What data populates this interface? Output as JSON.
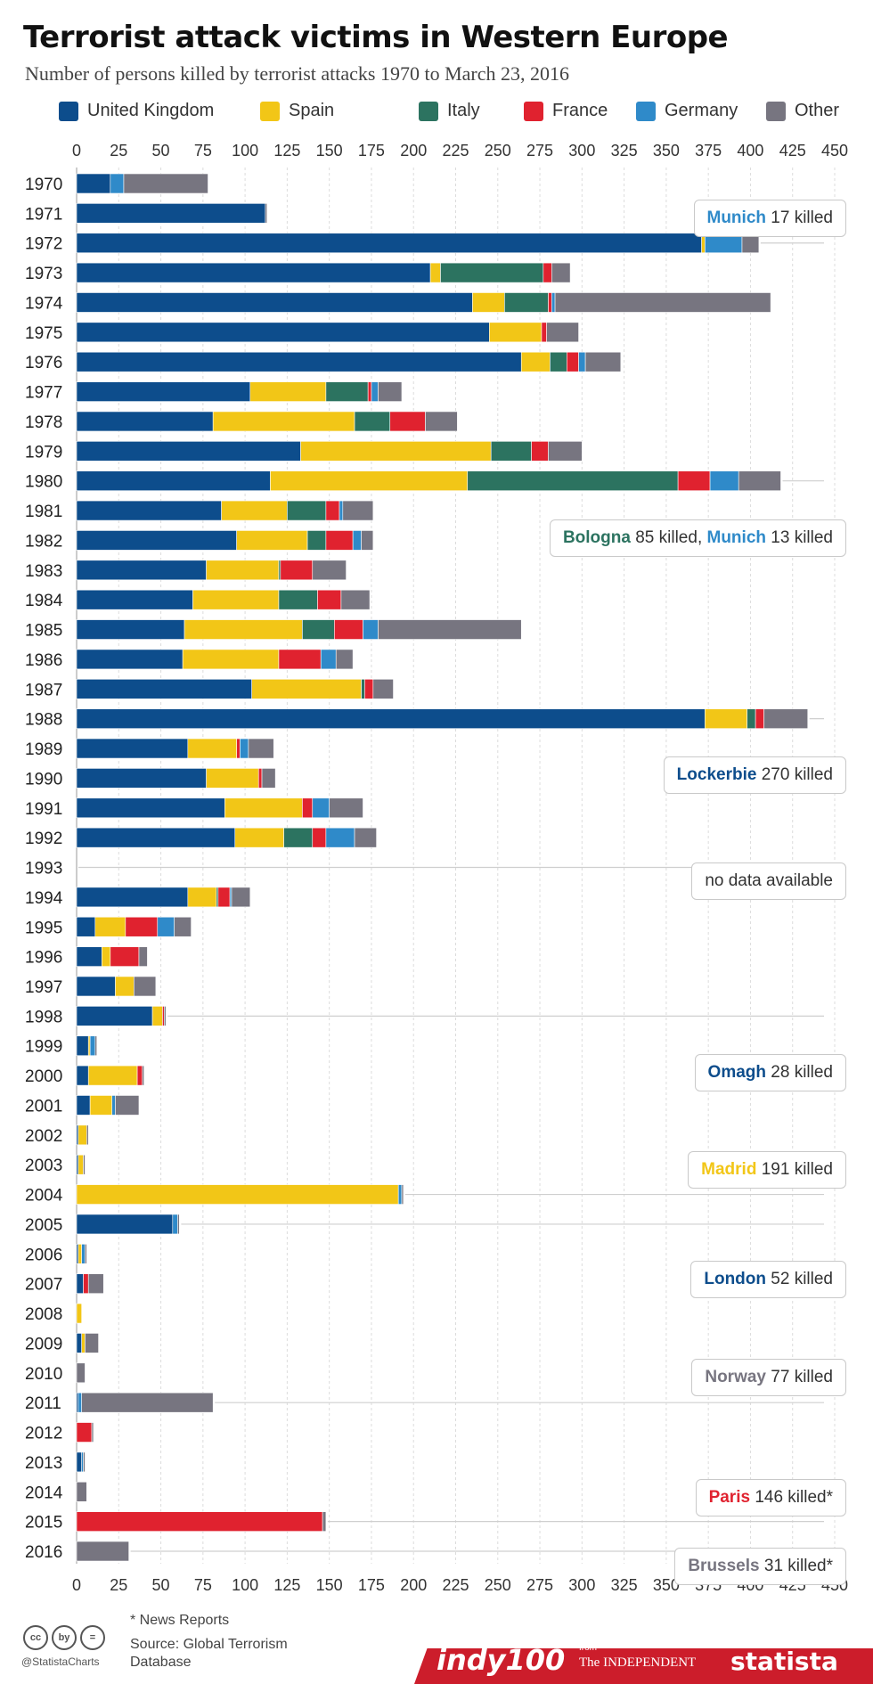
{
  "title": "Terrorist attack victims in Western Europe",
  "subtitle": "Number of persons killed by terrorist attacks 1970 to March 23, 2016",
  "legend": [
    {
      "label": "United Kingdom",
      "color": "#0d4d8c"
    },
    {
      "label": "Spain",
      "color": "#f2c617"
    },
    {
      "label": "Italy",
      "color": "#2c7360"
    },
    {
      "label": "France",
      "color": "#e0222f"
    },
    {
      "label": "Germany",
      "color": "#2f8ac9"
    },
    {
      "label": "Other",
      "color": "#777580"
    }
  ],
  "chart_data": {
    "type": "bar",
    "orientation": "horizontal",
    "stacked": true,
    "title": "Terrorist attack victims in Western Europe",
    "xlim": [
      0,
      450
    ],
    "x_ticks": [
      "0",
      "25",
      "50",
      "75",
      "100",
      "125",
      "150",
      "175",
      "200",
      "225",
      "250",
      "275",
      "300",
      "325",
      "350",
      "375",
      "400",
      "425",
      "450"
    ],
    "grid": true,
    "legend_position": "top",
    "categories": [
      "1970",
      "1971",
      "1972",
      "1973",
      "1974",
      "1975",
      "1976",
      "1977",
      "1978",
      "1979",
      "1980",
      "1981",
      "1982",
      "1983",
      "1984",
      "1985",
      "1986",
      "1987",
      "1988",
      "1989",
      "1990",
      "1991",
      "1992",
      "1993",
      "1994",
      "1995",
      "1996",
      "1997",
      "1998",
      "1999",
      "2000",
      "2001",
      "2002",
      "2003",
      "2004",
      "2005",
      "2006",
      "2007",
      "2008",
      "2009",
      "2010",
      "2011",
      "2012",
      "2013",
      "2014",
      "2015",
      "2016"
    ],
    "series": [
      {
        "name": "United Kingdom",
        "color": "#0d4d8c",
        "values": [
          20,
          112,
          371,
          210,
          235,
          245,
          264,
          103,
          81,
          133,
          115,
          86,
          95,
          77,
          69,
          64,
          63,
          104,
          373,
          66,
          77,
          88,
          94,
          0,
          66,
          11,
          15,
          23,
          45,
          7,
          7,
          8,
          1,
          1,
          0,
          57,
          1,
          4,
          0,
          3,
          0,
          1,
          0,
          3,
          0,
          0,
          0
        ]
      },
      {
        "name": "Spain",
        "color": "#f2c617",
        "values": [
          0,
          0,
          2,
          6,
          19,
          31,
          17,
          45,
          84,
          113,
          117,
          39,
          42,
          43,
          51,
          70,
          57,
          65,
          25,
          29,
          31,
          46,
          29,
          0,
          17,
          18,
          5,
          11,
          6,
          1,
          29,
          13,
          5,
          3,
          191,
          0,
          2,
          0,
          3,
          2,
          0,
          0,
          0,
          0,
          0,
          0,
          0
        ]
      },
      {
        "name": "Italy",
        "color": "#2c7360",
        "values": [
          0,
          0,
          0,
          61,
          26,
          0,
          10,
          25,
          21,
          24,
          125,
          23,
          11,
          1,
          23,
          19,
          0,
          2,
          5,
          0,
          0,
          0,
          17,
          0,
          1,
          0,
          0,
          0,
          0,
          0,
          0,
          0,
          0,
          0,
          0,
          0,
          0,
          0,
          0,
          0,
          0,
          0,
          0,
          0,
          0,
          0,
          0
        ]
      },
      {
        "name": "France",
        "color": "#e0222f",
        "values": [
          0,
          0,
          0,
          5,
          2,
          3,
          7,
          2,
          21,
          10,
          19,
          8,
          16,
          19,
          14,
          17,
          25,
          5,
          5,
          2,
          2,
          6,
          8,
          0,
          7,
          19,
          17,
          0,
          1,
          0,
          3,
          0,
          0,
          0,
          0,
          0,
          0,
          3,
          0,
          0,
          0,
          0,
          9,
          0,
          0,
          146,
          0
        ]
      },
      {
        "name": "Germany",
        "color": "#2f8ac9",
        "values": [
          8,
          0,
          22,
          0,
          2,
          0,
          4,
          4,
          0,
          0,
          17,
          2,
          5,
          0,
          0,
          9,
          9,
          0,
          0,
          5,
          0,
          10,
          17,
          0,
          1,
          10,
          0,
          0,
          0,
          3,
          0,
          2,
          0,
          0,
          2,
          3,
          2,
          0,
          0,
          0,
          0,
          2,
          0,
          1,
          0,
          0,
          0
        ]
      },
      {
        "name": "Other",
        "color": "#777580",
        "values": [
          50,
          1,
          10,
          11,
          128,
          19,
          21,
          14,
          19,
          20,
          25,
          18,
          7,
          20,
          17,
          85,
          10,
          12,
          26,
          15,
          8,
          20,
          13,
          0,
          11,
          10,
          5,
          13,
          1,
          1,
          1,
          14,
          1,
          1,
          1,
          1,
          1,
          9,
          0,
          8,
          5,
          78,
          1,
          1,
          6,
          2,
          31
        ]
      }
    ],
    "annotations": [
      {
        "row": "1972",
        "parts": [
          {
            "text": "Munich",
            "bold": true,
            "color": "#2f8ac9"
          },
          {
            "text": " 17 killed"
          }
        ]
      },
      {
        "row": "1980",
        "parts": [
          {
            "text": "Bologna",
            "bold": true,
            "color": "#2c7360"
          },
          {
            "text": " 85 killed, "
          },
          {
            "text": "Munich",
            "bold": true,
            "color": "#2f8ac9"
          },
          {
            "text": " 13 killed"
          }
        ]
      },
      {
        "row": "1988",
        "parts": [
          {
            "text": "Lockerbie",
            "bold": true,
            "color": "#0d4d8c"
          },
          {
            "text": " 270 killed"
          }
        ]
      },
      {
        "row": "1993",
        "parts": [
          {
            "text": "no data available"
          }
        ]
      },
      {
        "row": "1998",
        "parts": [
          {
            "text": "Omagh",
            "bold": true,
            "color": "#0d4d8c"
          },
          {
            "text": " 28 killed"
          }
        ]
      },
      {
        "row": "2004",
        "parts": [
          {
            "text": "Madrid",
            "bold": true,
            "color": "#f2c617"
          },
          {
            "text": " 191 killed"
          }
        ]
      },
      {
        "row": "2005",
        "parts": [
          {
            "text": "London",
            "bold": true,
            "color": "#0d4d8c"
          },
          {
            "text": " 52 killed"
          }
        ]
      },
      {
        "row": "2011",
        "parts": [
          {
            "text": "Norway",
            "bold": true,
            "color": "#777580"
          },
          {
            "text": " 77 killed"
          }
        ]
      },
      {
        "row": "2015",
        "parts": [
          {
            "text": "Paris",
            "bold": true,
            "color": "#e0222f"
          },
          {
            "text": " 146 killed*"
          }
        ]
      },
      {
        "row": "2016",
        "parts": [
          {
            "text": "Brussels",
            "bold": true,
            "color": "#777580"
          },
          {
            "text": " 31 killed*"
          }
        ]
      }
    ]
  },
  "footer": {
    "cc_icons": [
      "cc",
      "by",
      "="
    ],
    "handle": "@StatistaCharts",
    "news_note": "* News Reports",
    "source": "Source: Global Terrorism Database",
    "logo_indy": "indy100",
    "logo_from": "from",
    "logo_independent": "The INDEPENDENT",
    "logo_statista": "statista"
  }
}
